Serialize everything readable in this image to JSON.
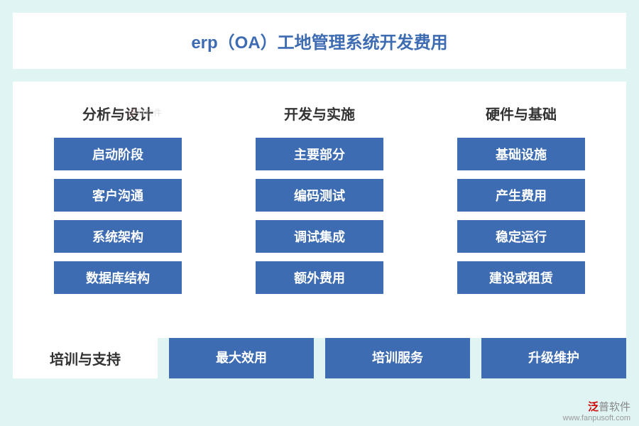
{
  "title": "erp（OA）工地管理系统开发费用",
  "colors": {
    "background": "#e0f4f4",
    "box_bg": "#ffffff",
    "primary": "#3d6cb3",
    "header_text": "#333333",
    "button_text": "#ffffff",
    "title_text": "#3d6cb3"
  },
  "typography": {
    "title_fontsize": 24,
    "header_fontsize": 20,
    "button_fontsize": 18
  },
  "columns": [
    {
      "header": "分析与设计",
      "items": [
        "启动阶段",
        "客户沟通",
        "系统架构",
        "数据库结构"
      ]
    },
    {
      "header": "开发与实施",
      "items": [
        "主要部分",
        "编码测试",
        "调试集成",
        "额外费用"
      ]
    },
    {
      "header": "硬件与基础",
      "items": [
        "基础设施",
        "产生费用",
        "稳定运行",
        "建设或租赁"
      ]
    }
  ],
  "bottom": {
    "label": "培训与支持",
    "items": [
      "最大效用",
      "培训服务",
      "升级维护"
    ]
  },
  "watermark": {
    "brand_prefix": "泛",
    "brand_rest": "普软件",
    "url": "www.fanpusoft.com"
  }
}
